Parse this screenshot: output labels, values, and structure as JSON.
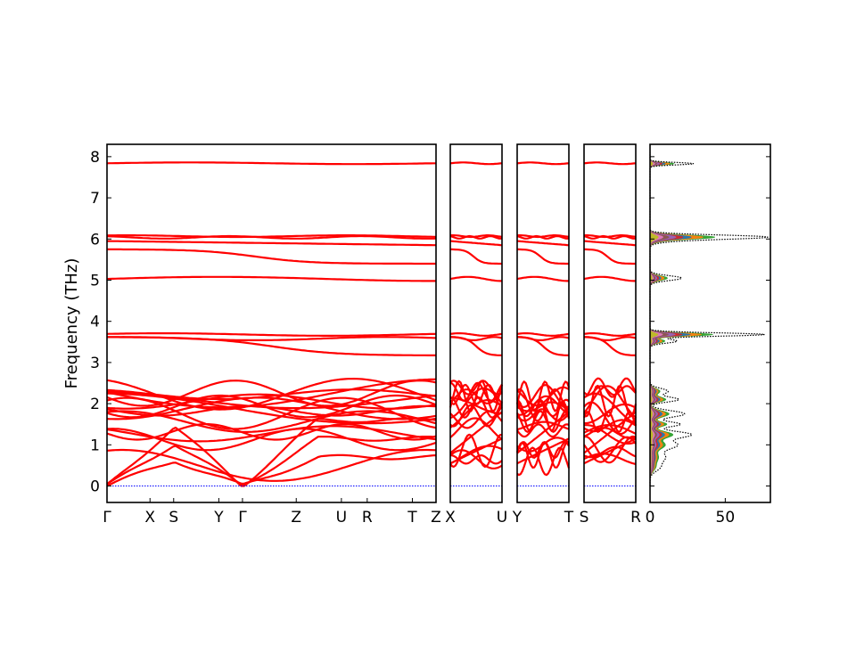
{
  "chart_data": {
    "type": "line",
    "ylabel": "Frequency (THz)",
    "ylim": [
      -0.4,
      8.3
    ],
    "yticks": [
      0,
      1,
      2,
      3,
      4,
      5,
      6,
      7,
      8
    ],
    "segments": [
      {
        "labels": [
          "Γ",
          "X",
          "S",
          "Y",
          "Γ",
          "Z",
          "U",
          "R",
          "T",
          "Z"
        ],
        "positions": [
          0,
          1,
          1.55,
          2.6,
          3.15,
          4.4,
          5.45,
          6.05,
          7.1,
          7.65
        ]
      },
      {
        "labels": [
          "X",
          "U"
        ],
        "positions": [
          0,
          1
        ]
      },
      {
        "labels": [
          "Y",
          "T"
        ],
        "positions": [
          0,
          1
        ]
      },
      {
        "labels": [
          "S",
          "R"
        ],
        "positions": [
          0,
          1
        ]
      }
    ],
    "band_color": "#ff0000",
    "zero_line_color": "#0000ff",
    "dos": {
      "xlim": [
        0,
        80
      ],
      "xticks": [
        0,
        50
      ],
      "total_color": "#000000",
      "projected_colors": [
        "#2ca02c",
        "#ff7f0e",
        "#1f77b4",
        "#d62728",
        "#9467bd",
        "#8c564b",
        "#e377c2",
        "#bcbd22"
      ],
      "peaks": [
        {
          "f": 7.83,
          "w": 0.03,
          "h": 29
        },
        {
          "f": 6.05,
          "w": 0.05,
          "h": 71
        },
        {
          "f": 5.98,
          "w": 0.06,
          "h": 14
        },
        {
          "f": 5.05,
          "w": 0.06,
          "h": 21
        },
        {
          "f": 3.68,
          "w": 0.04,
          "h": 76
        },
        {
          "f": 3.52,
          "w": 0.05,
          "h": 18
        },
        {
          "f": 2.3,
          "w": 0.07,
          "h": 12
        },
        {
          "f": 2.1,
          "w": 0.06,
          "h": 19
        },
        {
          "f": 1.75,
          "w": 0.08,
          "h": 23
        },
        {
          "f": 1.5,
          "w": 0.06,
          "h": 20
        },
        {
          "f": 1.25,
          "w": 0.08,
          "h": 27
        },
        {
          "f": 1.0,
          "w": 0.1,
          "h": 18
        },
        {
          "f": 0.7,
          "w": 0.12,
          "h": 10
        },
        {
          "f": 0.45,
          "w": 0.1,
          "h": 6
        }
      ]
    }
  }
}
